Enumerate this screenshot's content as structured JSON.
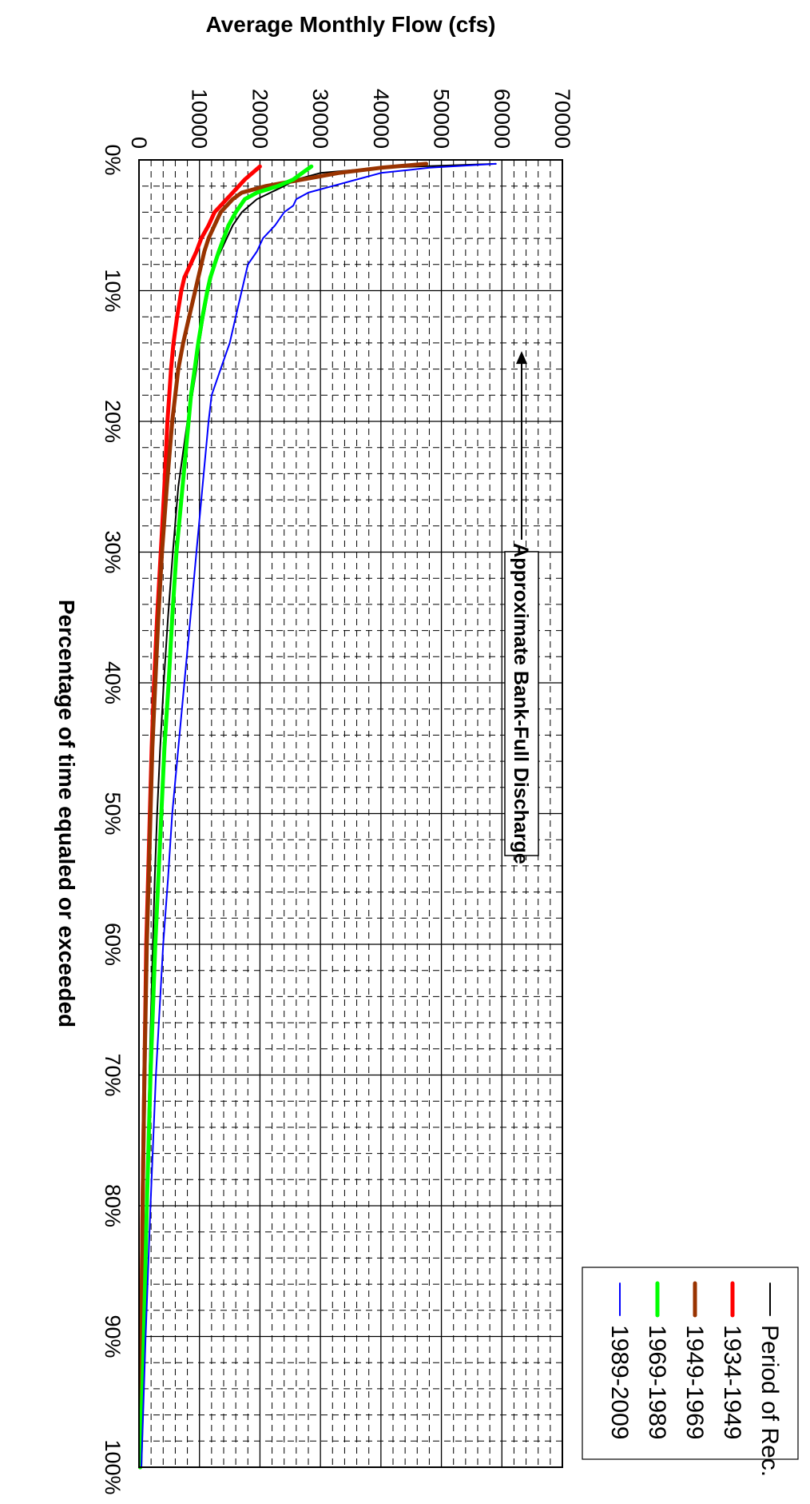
{
  "chart_data": {
    "type": "line",
    "title": "",
    "xlabel": "Percentage of time equaled or exceeded",
    "ylabel": "Average Monthly Flow (cfs)",
    "xlim": [
      0,
      100
    ],
    "ylim": [
      0,
      70000
    ],
    "x_ticks": [
      "0%",
      "10%",
      "20%",
      "30%",
      "40%",
      "50%",
      "60%",
      "70%",
      "80%",
      "90%",
      "100%"
    ],
    "y_ticks": [
      "0",
      "10000",
      "20000",
      "30000",
      "40000",
      "50000",
      "60000",
      "70000"
    ],
    "grid": true,
    "legend_position": "top-right",
    "series": [
      {
        "name": "Period of Rec.",
        "color": "#000000",
        "x": [
          0.3,
          0.6,
          1,
          1.5,
          2,
          3,
          4,
          5,
          6,
          7,
          8,
          10,
          12,
          14,
          16,
          18,
          20,
          25,
          30,
          35,
          40,
          45,
          50,
          55,
          60,
          70,
          80,
          90,
          100
        ],
        "values": [
          59000,
          40000,
          30000,
          26000,
          24000,
          19500,
          17000,
          15500,
          14500,
          13500,
          12500,
          11500,
          10700,
          10000,
          9500,
          8800,
          8000,
          6500,
          5600,
          4800,
          4100,
          3500,
          3000,
          2600,
          2300,
          1700,
          1200,
          800,
          200
        ]
      },
      {
        "name": "1934-1949",
        "color": "#ff0000",
        "x": [
          0.5,
          1.5,
          2.5,
          3,
          4,
          5,
          6,
          7,
          8,
          9,
          10,
          12,
          14,
          16,
          18,
          20,
          25,
          30,
          35,
          40,
          45,
          50,
          55,
          60,
          70,
          80,
          90,
          100
        ],
        "values": [
          20000,
          17500,
          15500,
          14500,
          12500,
          11500,
          10300,
          9500,
          8500,
          7500,
          7000,
          6300,
          5700,
          5300,
          5000,
          4700,
          4200,
          3600,
          3000,
          2500,
          2100,
          1800,
          1500,
          1200,
          900,
          600,
          400,
          200
        ]
      },
      {
        "name": "1949-1969",
        "color": "#993300",
        "x": [
          0.3,
          0.6,
          1,
          1.5,
          2,
          2.5,
          3,
          4,
          5,
          6,
          7,
          8,
          10,
          12,
          14,
          16,
          18,
          20,
          25,
          30,
          35,
          40,
          45,
          50,
          55,
          60,
          70,
          80,
          90,
          100
        ],
        "values": [
          47500,
          40000,
          33000,
          27000,
          21000,
          17000,
          15500,
          13500,
          12500,
          11500,
          10800,
          10300,
          9300,
          8300,
          7300,
          6500,
          6000,
          5500,
          4600,
          3800,
          3200,
          2700,
          2200,
          1900,
          1600,
          1300,
          900,
          600,
          400,
          200
        ]
      },
      {
        "name": "1969-1989",
        "color": "#00ff00",
        "x": [
          0.5,
          1,
          1.5,
          2,
          2.5,
          3,
          4,
          5,
          6,
          7,
          8,
          9,
          10,
          12,
          14,
          16,
          18,
          20,
          25,
          30,
          35,
          40,
          45,
          50,
          55,
          60,
          70,
          80,
          90,
          100
        ],
        "values": [
          28500,
          27000,
          25500,
          23000,
          19500,
          17500,
          16000,
          14800,
          14000,
          13200,
          12500,
          11800,
          11300,
          10500,
          9800,
          9200,
          8600,
          8200,
          7200,
          6200,
          5500,
          4900,
          4200,
          3700,
          3200,
          2700,
          1900,
          1300,
          800,
          200
        ]
      },
      {
        "name": "1989-2009",
        "color": "#0000ff",
        "x": [
          0.3,
          0.6,
          1,
          1.5,
          2,
          2.5,
          3,
          3.5,
          4,
          5,
          6,
          7,
          8,
          10,
          12,
          14,
          16,
          18,
          20,
          25,
          30,
          35,
          40,
          45,
          50,
          55,
          60,
          70,
          80,
          90,
          100
        ],
        "values": [
          59000,
          48000,
          40000,
          36000,
          32000,
          28000,
          26000,
          25500,
          24000,
          22500,
          20500,
          19500,
          18000,
          17000,
          16000,
          15000,
          13500,
          12000,
          11500,
          10500,
          9500,
          8500,
          7500,
          6500,
          5500,
          4800,
          4000,
          2800,
          1900,
          1100,
          400
        ]
      }
    ],
    "annotations": [
      {
        "text": "Approximate Bank-Full Discharge",
        "x": 14.5,
        "y": 15000
      }
    ]
  }
}
